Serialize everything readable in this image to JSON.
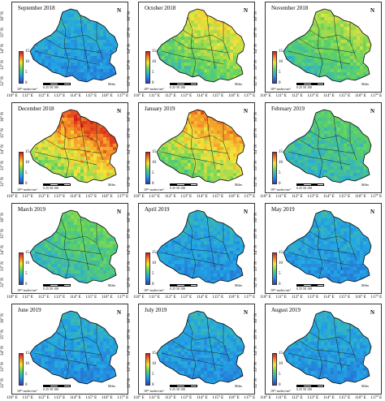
{
  "panels": [
    {
      "title": "September 2018",
      "heat": 0.1
    },
    {
      "title": "October 2018",
      "heat": 0.55
    },
    {
      "title": "November 2018",
      "heat": 0.45
    },
    {
      "title": "December 2018",
      "heat": 0.9
    },
    {
      "title": "January 2019",
      "heat": 0.75
    },
    {
      "title": "February 2019",
      "heat": 0.25
    },
    {
      "title": "March 2019",
      "heat": 0.3
    },
    {
      "title": "April 2019",
      "heat": 0.15
    },
    {
      "title": "May 2019",
      "heat": 0.1
    },
    {
      "title": "June 2019",
      "heat": 0.12
    },
    {
      "title": "July 2019",
      "heat": 0.05
    },
    {
      "title": "August 2019",
      "heat": 0.05
    }
  ],
  "lat_labels": [
    "36° N",
    "35° N",
    "34° N",
    "33° N",
    "32° N"
  ],
  "lon_labels": [
    "110° E",
    "111° E",
    "112° E",
    "113° E",
    "114° E",
    "115° E",
    "116° E",
    "117° E"
  ],
  "colorbar_ticks": [
    "15",
    "10",
    "5",
    "0"
  ],
  "colorbar_unit": "10¹⁵ molec/cm²",
  "scale_label": "0  25  50  100",
  "scale_unit": "Miles",
  "north_label": "N"
}
